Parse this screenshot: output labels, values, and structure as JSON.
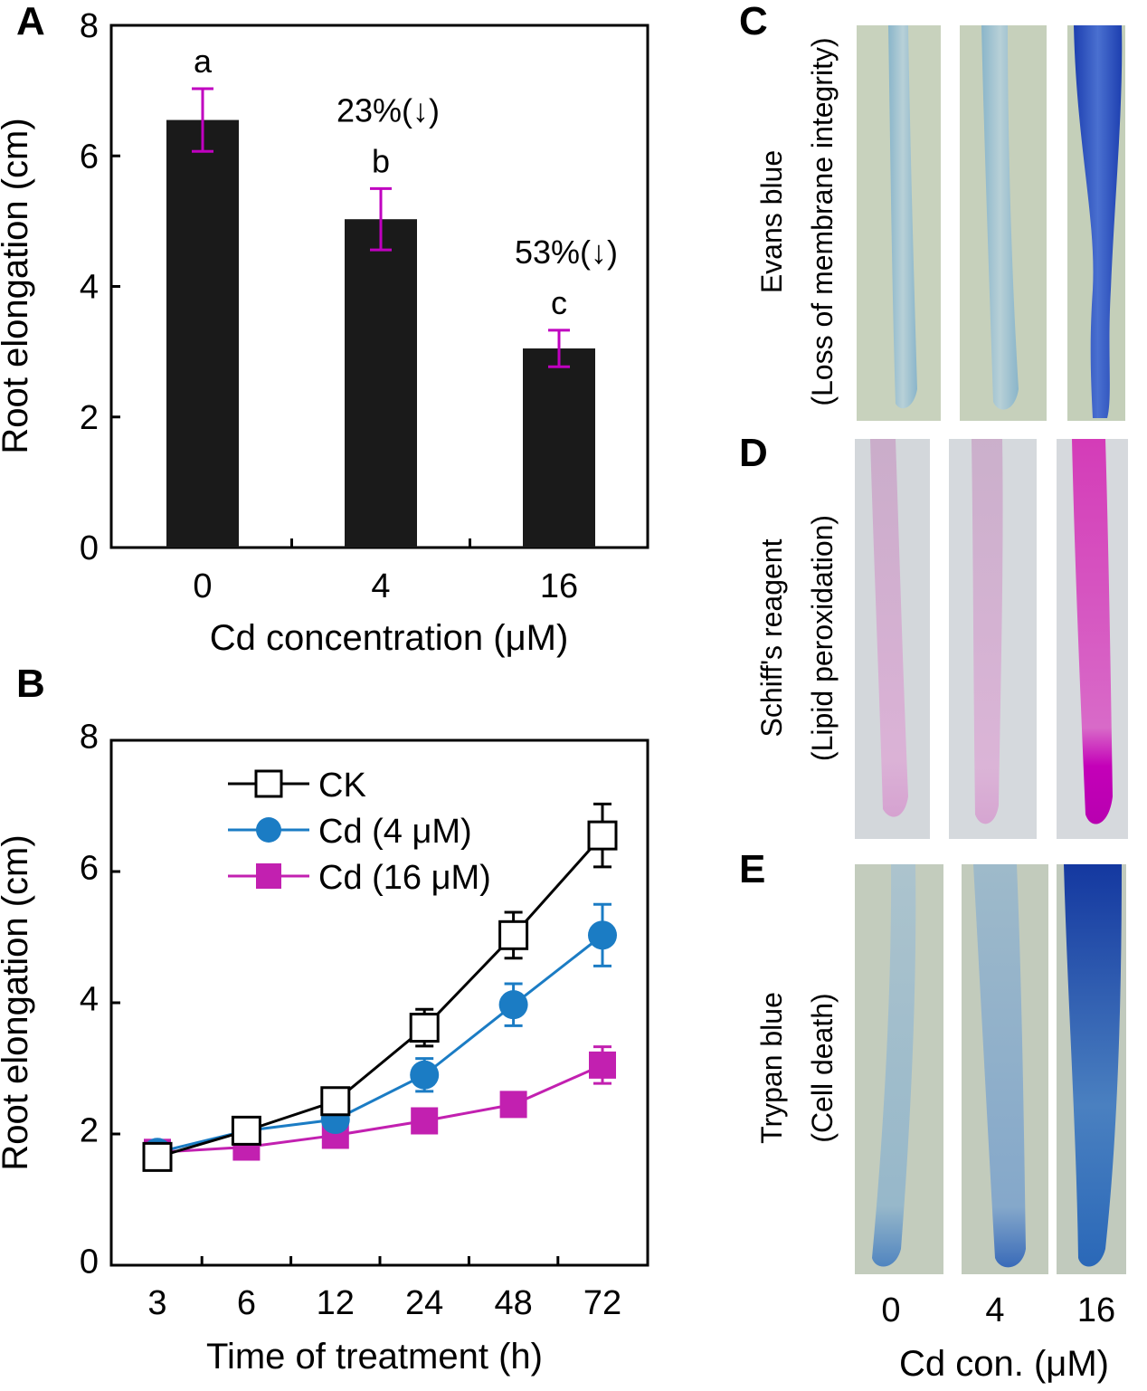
{
  "colors": {
    "bar": "#1a1a1a",
    "errorbar_a": "#c000c0",
    "ck": "#000000",
    "cd4": "#1b7cc4",
    "cd16": "#c220b0",
    "evans_bg": "#c9d3bd",
    "schiff_bg": "#d4d8dc",
    "trypan_bg": "#c3ccbd"
  },
  "chart_data": [
    {
      "panel": "A",
      "type": "bar",
      "categories": [
        "0",
        "4",
        "16"
      ],
      "values": [
        6.55,
        5.03,
        3.05
      ],
      "errors": [
        0.48,
        0.47,
        0.28
      ],
      "letters": [
        "a",
        "b",
        "c"
      ],
      "annotations": [
        "",
        "23%(↓)",
        "53%(↓)"
      ],
      "xlabel": "Cd concentration (μM)",
      "ylabel": "Root elongation (cm)",
      "ylim": [
        0,
        8
      ],
      "yticks": [
        "0",
        "2",
        "4",
        "6",
        "8"
      ]
    },
    {
      "panel": "B",
      "type": "line",
      "categories": [
        "3",
        "6",
        "12",
        "24",
        "48",
        "72"
      ],
      "series": [
        {
          "name": "CK",
          "marker": "open-square",
          "values": [
            1.65,
            2.05,
            2.5,
            3.62,
            5.03,
            6.55
          ],
          "errors": [
            0.08,
            0.1,
            0.12,
            0.28,
            0.35,
            0.48
          ]
        },
        {
          "name": "Cd (4 μM)",
          "marker": "circle",
          "values": [
            1.72,
            2.05,
            2.22,
            2.9,
            3.97,
            5.03
          ],
          "errors": [
            0.08,
            0.1,
            0.12,
            0.25,
            0.32,
            0.47
          ]
        },
        {
          "name": "Cd (16 μM)",
          "marker": "filled-square",
          "values": [
            1.72,
            1.8,
            1.98,
            2.2,
            2.45,
            3.05
          ],
          "errors": [
            0.08,
            0.08,
            0.1,
            0.12,
            0.15,
            0.28
          ]
        }
      ],
      "xlabel": "Time of treatment (h)",
      "ylabel": "Root elongation (cm)",
      "ylim": [
        0,
        8
      ],
      "yticks": [
        "0",
        "2",
        "4",
        "6",
        "8"
      ],
      "legend_position": "top-left"
    }
  ],
  "images": {
    "C": {
      "letter": "C",
      "label_line1": "Evans blue",
      "label_line2": "(Loss of membrane integrity)"
    },
    "D": {
      "letter": "D",
      "label_line1": "Schiff's reagent",
      "label_line2": "(Lipid peroxidation)"
    },
    "E": {
      "letter": "E",
      "label_line1": "Trypan blue",
      "label_line2": "(Cell death)"
    },
    "x_labels": [
      "0",
      "4",
      "16"
    ],
    "xlabel": "Cd con. (μM)"
  }
}
